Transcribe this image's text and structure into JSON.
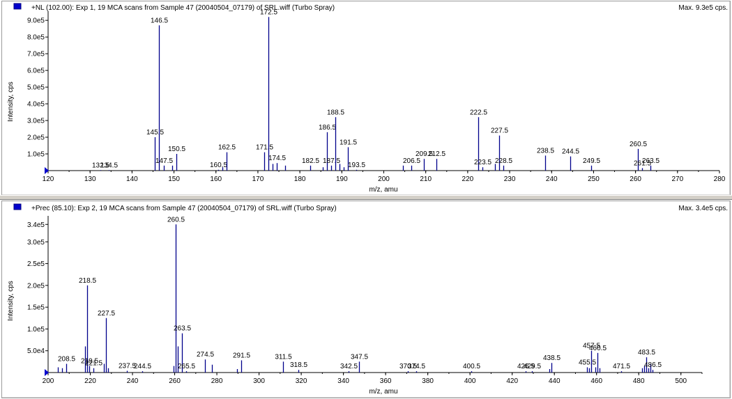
{
  "chart_data": [
    {
      "type": "bar",
      "title": "+NL (102.00): Exp 1, 19 MCA scans from Sample 47 (20040504_07179) of SRL.wiff (Turbo Spray)",
      "max_label": "Max. 9.3e5 cps.",
      "xlabel": "m/z, amu",
      "ylabel": "Intensity, cps",
      "xlim": [
        120,
        280
      ],
      "ylim": [
        0,
        930000
      ],
      "x_ticks": [
        120,
        130,
        140,
        150,
        160,
        170,
        180,
        190,
        200,
        210,
        220,
        230,
        240,
        250,
        260,
        270,
        280
      ],
      "y_ticks": [
        {
          "v": 100000,
          "label": "1.0e5"
        },
        {
          "v": 200000,
          "label": "2.0e5"
        },
        {
          "v": 300000,
          "label": "3.0e5"
        },
        {
          "v": 400000,
          "label": "4.0e5"
        },
        {
          "v": 500000,
          "label": "5.0e5"
        },
        {
          "v": 600000,
          "label": "6.0e5"
        },
        {
          "v": 700000,
          "label": "7.0e5"
        },
        {
          "v": 800000,
          "label": "8.0e5"
        },
        {
          "v": 900000,
          "label": "9.0e5"
        }
      ],
      "peaks": [
        {
          "x": 132.5,
          "y": 3000,
          "label": "132.5"
        },
        {
          "x": 134.5,
          "y": 3000,
          "label": "134.5"
        },
        {
          "x": 145.5,
          "y": 200000,
          "label": "145.5"
        },
        {
          "x": 146.5,
          "y": 870000,
          "label": "146.5"
        },
        {
          "x": 147.5,
          "y": 30000,
          "label": "147.5"
        },
        {
          "x": 149.5,
          "y": 30000,
          "label": ""
        },
        {
          "x": 150.5,
          "y": 100000,
          "label": "150.5"
        },
        {
          "x": 160.5,
          "y": 5000,
          "label": "160.5"
        },
        {
          "x": 161.5,
          "y": 20000,
          "label": ""
        },
        {
          "x": 162.5,
          "y": 110000,
          "label": "162.5"
        },
        {
          "x": 171.5,
          "y": 110000,
          "label": "171.5"
        },
        {
          "x": 172.5,
          "y": 920000,
          "label": "172.5"
        },
        {
          "x": 173.5,
          "y": 40000,
          "label": ""
        },
        {
          "x": 174.5,
          "y": 45000,
          "label": "174.5"
        },
        {
          "x": 176.5,
          "y": 30000,
          "label": ""
        },
        {
          "x": 182.5,
          "y": 30000,
          "label": "182.5"
        },
        {
          "x": 185.5,
          "y": 20000,
          "label": ""
        },
        {
          "x": 186.5,
          "y": 230000,
          "label": "186.5"
        },
        {
          "x": 187.5,
          "y": 30000,
          "label": "187.5"
        },
        {
          "x": 188.5,
          "y": 320000,
          "label": "188.5"
        },
        {
          "x": 189.5,
          "y": 40000,
          "label": ""
        },
        {
          "x": 190.5,
          "y": 20000,
          "label": ""
        },
        {
          "x": 191.5,
          "y": 140000,
          "label": "191.5"
        },
        {
          "x": 193.5,
          "y": 5000,
          "label": "193.5"
        },
        {
          "x": 204.5,
          "y": 30000,
          "label": ""
        },
        {
          "x": 206.5,
          "y": 30000,
          "label": "206.5"
        },
        {
          "x": 209.5,
          "y": 70000,
          "label": "209.5"
        },
        {
          "x": 212.5,
          "y": 70000,
          "label": "212.5"
        },
        {
          "x": 222.5,
          "y": 320000,
          "label": "222.5"
        },
        {
          "x": 223.5,
          "y": 20000,
          "label": "223.5"
        },
        {
          "x": 226.5,
          "y": 40000,
          "label": ""
        },
        {
          "x": 227.5,
          "y": 210000,
          "label": "227.5"
        },
        {
          "x": 228.5,
          "y": 30000,
          "label": "228.5"
        },
        {
          "x": 238.5,
          "y": 90000,
          "label": "238.5"
        },
        {
          "x": 244.5,
          "y": 85000,
          "label": "244.5"
        },
        {
          "x": 249.5,
          "y": 30000,
          "label": "249.5"
        },
        {
          "x": 260.5,
          "y": 130000,
          "label": "260.5"
        },
        {
          "x": 261.5,
          "y": 15000,
          "label": "261.5"
        },
        {
          "x": 263.5,
          "y": 30000,
          "label": "263.5"
        }
      ]
    },
    {
      "type": "bar",
      "title": "+Prec (85.10): Exp 2, 19 MCA scans from Sample 47 (20040504_07179) of SRL.wiff (Turbo Spray)",
      "max_label": "Max. 3.4e5 cps.",
      "xlabel": "m/z, amu",
      "ylabel": "Intensity, cps",
      "xlim": [
        200,
        510
      ],
      "ylim": [
        0,
        350000
      ],
      "x_ticks": [
        200,
        220,
        240,
        260,
        280,
        300,
        320,
        340,
        360,
        380,
        400,
        420,
        440,
        460,
        480,
        500
      ],
      "y_ticks": [
        {
          "v": 50000,
          "label": "5.0e4"
        },
        {
          "v": 100000,
          "label": "1.0e5"
        },
        {
          "v": 150000,
          "label": "1.5e5"
        },
        {
          "v": 200000,
          "label": "2.0e5"
        },
        {
          "v": 250000,
          "label": "2.5e5"
        },
        {
          "v": 300000,
          "label": "3.0e5"
        },
        {
          "v": 340000,
          "label": "3.4e5"
        }
      ],
      "peaks": [
        {
          "x": 204.5,
          "y": 12000,
          "label": ""
        },
        {
          "x": 206.5,
          "y": 10000,
          "label": ""
        },
        {
          "x": 208.5,
          "y": 20000,
          "label": "208.5"
        },
        {
          "x": 217.5,
          "y": 60000,
          "label": ""
        },
        {
          "x": 218.5,
          "y": 200000,
          "label": "218.5"
        },
        {
          "x": 219.5,
          "y": 15000,
          "label": "219.5"
        },
        {
          "x": 221.5,
          "y": 10000,
          "label": "221.5"
        },
        {
          "x": 226.5,
          "y": 20000,
          "label": ""
        },
        {
          "x": 227.5,
          "y": 125000,
          "label": "227.5"
        },
        {
          "x": 228.5,
          "y": 10000,
          "label": ""
        },
        {
          "x": 237.5,
          "y": 4000,
          "label": "237.5"
        },
        {
          "x": 244.5,
          "y": 3000,
          "label": "244.5"
        },
        {
          "x": 259.5,
          "y": 15000,
          "label": ""
        },
        {
          "x": 260.5,
          "y": 340000,
          "label": "260.5"
        },
        {
          "x": 261.5,
          "y": 60000,
          "label": ""
        },
        {
          "x": 263.5,
          "y": 90000,
          "label": "263.5"
        },
        {
          "x": 265.5,
          "y": 3000,
          "label": "265.5"
        },
        {
          "x": 274.5,
          "y": 30000,
          "label": "274.5"
        },
        {
          "x": 277.5,
          "y": 18000,
          "label": ""
        },
        {
          "x": 289.5,
          "y": 8000,
          "label": ""
        },
        {
          "x": 291.5,
          "y": 28000,
          "label": "291.5"
        },
        {
          "x": 311.5,
          "y": 25000,
          "label": "311.5"
        },
        {
          "x": 318.5,
          "y": 6000,
          "label": "318.5"
        },
        {
          "x": 342.5,
          "y": 3000,
          "label": "342.5"
        },
        {
          "x": 347.5,
          "y": 25000,
          "label": "347.5"
        },
        {
          "x": 370.5,
          "y": 3000,
          "label": "370.5"
        },
        {
          "x": 374.5,
          "y": 3000,
          "label": "374.5"
        },
        {
          "x": 400.5,
          "y": 3000,
          "label": "400.5"
        },
        {
          "x": 426.5,
          "y": 3000,
          "label": "426.5"
        },
        {
          "x": 429.5,
          "y": 3000,
          "label": "429.5"
        },
        {
          "x": 437.5,
          "y": 8000,
          "label": ""
        },
        {
          "x": 438.5,
          "y": 22000,
          "label": "438.5"
        },
        {
          "x": 455.5,
          "y": 12000,
          "label": "455.5"
        },
        {
          "x": 456.5,
          "y": 10000,
          "label": ""
        },
        {
          "x": 457.5,
          "y": 50000,
          "label": "457.5"
        },
        {
          "x": 459.5,
          "y": 12000,
          "label": ""
        },
        {
          "x": 460.5,
          "y": 45000,
          "label": "460.5"
        },
        {
          "x": 461.5,
          "y": 10000,
          "label": ""
        },
        {
          "x": 471.5,
          "y": 3000,
          "label": "471.5"
        },
        {
          "x": 481.5,
          "y": 10000,
          "label": ""
        },
        {
          "x": 482.5,
          "y": 15000,
          "label": ""
        },
        {
          "x": 483.5,
          "y": 35000,
          "label": "483.5"
        },
        {
          "x": 484.5,
          "y": 10000,
          "label": ""
        },
        {
          "x": 485.5,
          "y": 20000,
          "label": ""
        },
        {
          "x": 486.5,
          "y": 6000,
          "label": "486.5"
        }
      ]
    }
  ],
  "colors": {
    "peak": "#00008b",
    "marker": "#0000cc",
    "axis": "#000000",
    "background": "#ffffff"
  }
}
